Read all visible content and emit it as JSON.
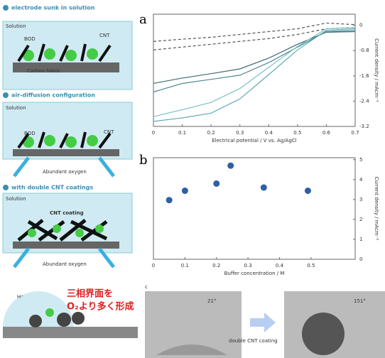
{
  "schematic": {
    "steps": [
      "electrode sunk in solution",
      "air-diffusion configuration",
      "with double CNT coatings"
    ],
    "solution": [
      "Solution",
      "Solution",
      "Solution"
    ],
    "bod": [
      "BOD",
      "BOD"
    ],
    "cnt": [
      "CNT",
      "CNT"
    ],
    "carbon_fabric": "Carbon fabric",
    "oxygen": [
      "Abundant oxygen",
      "Abundant oxygen"
    ],
    "cnt_coating": "CNT coating",
    "interface_line1": "三相界面を",
    "interface_line2": "O₂より多く形成",
    "proton": "H⁺",
    "angle_before": "21°",
    "angle_after": "151°",
    "arrow_text": "double CNT coating",
    "panel_labels": [
      "a",
      "b",
      "c"
    ]
  },
  "chart_data": [
    {
      "type": "line",
      "xlabel": "Electrical potential / V vs. Ag/AgCl",
      "ylabel": "Current density / mAcm⁻²",
      "x": [
        0,
        0.1,
        0.2,
        0.3,
        0.4,
        0.5,
        0.6,
        0.7
      ],
      "series": [
        {
          "color": "#555555",
          "dash": true,
          "values": [
            -0.51,
            -0.44,
            -0.38,
            -0.29,
            -0.2,
            -0.11,
            0.07,
            0.02
          ]
        },
        {
          "color": "#555555",
          "dash": true,
          "values": [
            -0.78,
            -0.69,
            -0.6,
            -0.51,
            -0.42,
            -0.29,
            -0.11,
            -0.07
          ]
        },
        {
          "color": "#3d6b73",
          "dash": false,
          "values": [
            -1.84,
            -1.67,
            -1.53,
            -1.38,
            -1.04,
            -0.6,
            -0.22,
            -0.2
          ]
        },
        {
          "color": "#4d8a94",
          "dash": false,
          "values": [
            -2.11,
            -1.84,
            -1.71,
            -1.58,
            -1.18,
            -0.69,
            -0.2,
            -0.16
          ]
        },
        {
          "color": "#7cbfc8",
          "dash": false,
          "values": [
            -2.89,
            -2.67,
            -2.44,
            -2.0,
            -1.33,
            -0.67,
            -0.11,
            -0.07
          ]
        },
        {
          "color": "#5fa9b3",
          "dash": false,
          "values": [
            -3.04,
            -2.93,
            -2.78,
            -2.33,
            -1.56,
            -0.78,
            -0.16,
            -0.11
          ]
        }
      ],
      "xlim": [
        0,
        0.7
      ],
      "xticks": [
        0,
        0.1,
        0.2,
        0.3,
        0.4,
        0.5,
        0.6,
        0.7
      ],
      "ylim": [
        -3.2,
        0.35
      ],
      "yticks": [
        0,
        -0.8,
        -1.6,
        -2.4,
        -3.2
      ]
    },
    {
      "type": "scatter",
      "xlabel": "Buffer concentration / M",
      "ylabel": "Current density / mAcm⁻²",
      "x": [
        0.05,
        0.1,
        0.2,
        0.245,
        0.35,
        0.49
      ],
      "values": [
        2.97,
        3.44,
        3.8,
        4.7,
        3.6,
        3.44
      ],
      "color": "#2f5fa8",
      "xlim": [
        0,
        0.64
      ],
      "xticks": [
        0,
        0.1,
        0.2,
        0.3,
        0.4,
        0.5
      ],
      "ylim": [
        0,
        5.1
      ],
      "yticks": [
        0,
        1,
        2,
        3,
        4,
        5
      ]
    }
  ]
}
